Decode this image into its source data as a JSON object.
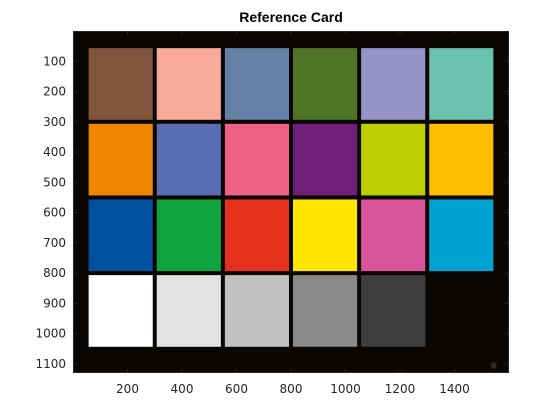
{
  "figure": {
    "title": "Reference Card"
  },
  "chart_data": {
    "type": "image",
    "title": "Reference Card",
    "xlim": [
      0,
      1600
    ],
    "ylim": [
      1130,
      0
    ],
    "xticks": [
      200,
      400,
      600,
      800,
      1000,
      1200,
      1400
    ],
    "yticks": [
      100,
      200,
      300,
      400,
      500,
      600,
      700,
      800,
      900,
      1000,
      1100
    ],
    "background_color": "#0a0604",
    "patch_grid": {
      "columns": 6,
      "rows": 4,
      "x_range": [
        50,
        1550
      ],
      "y_range": [
        50,
        1050
      ]
    },
    "patches": [
      {
        "row": 0,
        "col": 0,
        "color": "#81553c"
      },
      {
        "row": 0,
        "col": 1,
        "color": "#f8ab9b"
      },
      {
        "row": 0,
        "col": 2,
        "color": "#6581a6"
      },
      {
        "row": 0,
        "col": 3,
        "color": "#4f7425"
      },
      {
        "row": 0,
        "col": 4,
        "color": "#9693c9"
      },
      {
        "row": 0,
        "col": 5,
        "color": "#6ac2b1"
      },
      {
        "row": 1,
        "col": 0,
        "color": "#f08600"
      },
      {
        "row": 1,
        "col": 1,
        "color": "#5a6cb3"
      },
      {
        "row": 1,
        "col": 2,
        "color": "#ec6185"
      },
      {
        "row": 1,
        "col": 3,
        "color": "#6f1f79"
      },
      {
        "row": 1,
        "col": 4,
        "color": "#bccf00"
      },
      {
        "row": 1,
        "col": 5,
        "color": "#fdbd00"
      },
      {
        "row": 2,
        "col": 0,
        "color": "#0050a0"
      },
      {
        "row": 2,
        "col": 1,
        "color": "#0ea33c"
      },
      {
        "row": 2,
        "col": 2,
        "color": "#e5311c"
      },
      {
        "row": 2,
        "col": 3,
        "color": "#ffe600"
      },
      {
        "row": 2,
        "col": 4,
        "color": "#d8559b"
      },
      {
        "row": 2,
        "col": 5,
        "color": "#00a2d1"
      },
      {
        "row": 3,
        "col": 0,
        "color": "#ffffff"
      },
      {
        "row": 3,
        "col": 1,
        "color": "#e3e3e3"
      },
      {
        "row": 3,
        "col": 2,
        "color": "#c0c0c0"
      },
      {
        "row": 3,
        "col": 3,
        "color": "#898989"
      },
      {
        "row": 3,
        "col": 4,
        "color": "#3e3e3e"
      },
      {
        "row": 3,
        "col": 5,
        "color": "#0a0604"
      }
    ]
  }
}
